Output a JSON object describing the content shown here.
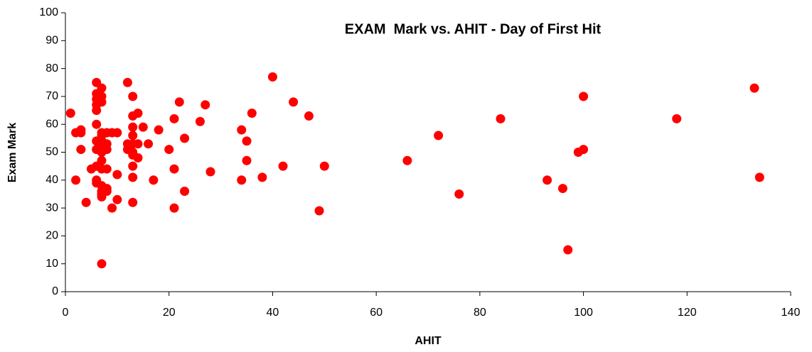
{
  "chart_data": {
    "type": "scatter",
    "title": "EXAM  Mark vs. AHIT - Day of First Hit",
    "x_label": "AHIT",
    "y_label": "Exam Mark",
    "series": [
      {
        "name": "Exam Mark",
        "color": "#ff0000",
        "x": [
          1,
          2,
          2,
          3,
          3,
          3,
          4,
          5,
          6,
          6,
          6,
          6,
          6,
          6,
          6,
          6,
          6,
          6,
          6,
          7,
          7,
          7,
          7,
          7,
          7,
          7,
          7,
          7,
          7,
          7,
          7,
          7,
          7,
          7,
          8,
          8,
          8,
          8,
          8,
          8,
          9,
          9,
          10,
          10,
          10,
          12,
          12,
          12,
          13,
          13,
          13,
          13,
          13,
          13,
          13,
          13,
          13,
          13,
          14,
          14,
          14,
          15,
          16,
          17,
          18,
          20,
          21,
          21,
          21,
          22,
          23,
          23,
          26,
          27,
          28,
          34,
          34,
          35,
          35,
          36,
          38,
          40,
          42,
          44,
          47,
          49,
          50,
          66,
          72,
          76,
          84,
          93,
          96,
          97,
          99,
          100,
          100,
          118,
          133,
          134
        ],
        "values": [
          64,
          57,
          40,
          58,
          57,
          51,
          32,
          44,
          75,
          71,
          69,
          67,
          65,
          60,
          54,
          51,
          45,
          40,
          39,
          73,
          70,
          68,
          57,
          56,
          54,
          52,
          50,
          47,
          44,
          38,
          36,
          35,
          34,
          10,
          57,
          53,
          51,
          44,
          37,
          36,
          57,
          30,
          57,
          42,
          33,
          75,
          53,
          51,
          70,
          63,
          59,
          56,
          53,
          50,
          49,
          45,
          41,
          32,
          64,
          53,
          48,
          59,
          53,
          40,
          58,
          51,
          62,
          44,
          30,
          68,
          55,
          36,
          61,
          67,
          43,
          58,
          40,
          54,
          47,
          64,
          41,
          77,
          45,
          68,
          63,
          29,
          45,
          47,
          56,
          35,
          62,
          40,
          37,
          15,
          50,
          51,
          70,
          62,
          73,
          41
        ]
      }
    ],
    "xlim": [
      0,
      140
    ],
    "xticks": [
      0,
      20,
      40,
      60,
      80,
      100,
      120,
      140
    ],
    "ylim": [
      0,
      100
    ],
    "yticks": [
      0,
      10,
      20,
      30,
      40,
      50,
      60,
      70,
      80,
      90,
      100
    ],
    "grid": false
  }
}
